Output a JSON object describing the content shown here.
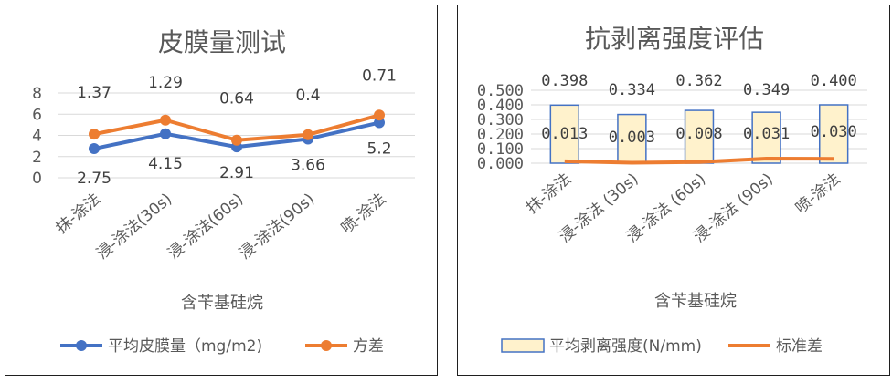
{
  "chart_data": [
    {
      "type": "line",
      "title": "皮膜量测试",
      "xlabel": "含苄基硅烷",
      "ylabel": "",
      "categories": [
        "抹-涂法",
        "浸-涂法(30s)",
        "浸-涂法(60s)",
        "浸-涂法(90s)",
        "喷-涂法"
      ],
      "ylim": [
        0,
        8
      ],
      "yticks": [
        "0",
        "2",
        "4",
        "6",
        "8"
      ],
      "grid": true,
      "legend_position": "bottom",
      "series": [
        {
          "name": "平均皮膜量（mg/m2)",
          "values": [
            2.75,
            4.15,
            2.91,
            3.66,
            5.2
          ],
          "labels": [
            "2.75",
            "4.15",
            "2.91",
            "3.66",
            "5.2"
          ],
          "color": "#4472C4"
        },
        {
          "name": "方差",
          "values": [
            4.12,
            5.44,
            3.55,
            4.06,
            5.91
          ],
          "labels": [
            "1.37",
            "1.29",
            "0.64",
            "0.4",
            "0.71"
          ],
          "color": "#ED7D31"
        }
      ]
    },
    {
      "type": "bar",
      "title": "抗剥离强度评估",
      "xlabel": "含苄基硅烷",
      "ylabel": "",
      "categories": [
        "抹-涂法",
        "浸-涂法 (30s)",
        "浸-涂法 (60s)",
        "浸-涂法 (90s)",
        "喷-涂法"
      ],
      "ylim": [
        0,
        0.5
      ],
      "yticks": [
        "0.000",
        "0.100",
        "0.200",
        "0.300",
        "0.400",
        "0.500"
      ],
      "grid": true,
      "legend_position": "bottom",
      "series": [
        {
          "name": "平均剥离强度(N/mm)",
          "kind": "bar",
          "values": [
            0.398,
            0.334,
            0.362,
            0.349,
            0.4
          ],
          "labels": [
            "0.398",
            "0.334",
            "0.362",
            "0.349",
            "0.400"
          ],
          "color": "#FFF2CC",
          "edge": "#4472C4"
        },
        {
          "name": "标准差",
          "kind": "line",
          "values": [
            0.013,
            0.003,
            0.008,
            0.031,
            0.03
          ],
          "labels": [
            "0.013",
            "0.003",
            "0.008",
            "0.031",
            "0.030"
          ],
          "color": "#ED7D31"
        }
      ]
    }
  ]
}
